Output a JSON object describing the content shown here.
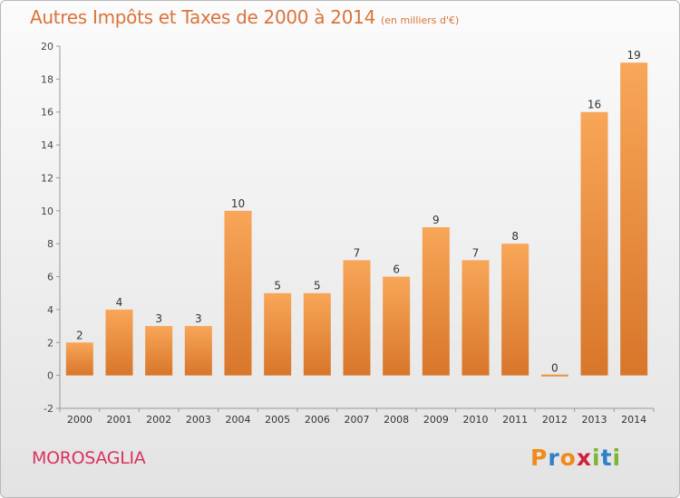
{
  "title": "Autres Impôts et Taxes de 2000 à 2014",
  "unit": "(en milliers d'€)",
  "commune": "MOROSAGLIA",
  "brand": {
    "letters": [
      "P",
      "r",
      "o",
      "x",
      "i",
      "t",
      "i"
    ],
    "colors": [
      "#f08a18",
      "#2f80c8",
      "#f08a18",
      "#d01f3d",
      "#7bb637",
      "#2f80c8",
      "#7bb637"
    ]
  },
  "colors": {
    "bar_light": "#f8a658",
    "bar_dark": "#d8762a",
    "axis": "#999999",
    "grid": "#999999"
  },
  "chart_data": {
    "type": "bar",
    "categories": [
      "2000",
      "2001",
      "2002",
      "2003",
      "2004",
      "2005",
      "2006",
      "2007",
      "2008",
      "2009",
      "2010",
      "2011",
      "2012",
      "2013",
      "2014"
    ],
    "values": [
      2,
      4,
      3,
      3,
      10,
      5,
      5,
      7,
      6,
      9,
      7,
      8,
      0,
      16,
      19
    ],
    "title": "Autres Impôts et Taxes de 2000 à 2014",
    "subtitle": "(en milliers d'€)",
    "xlabel": "",
    "ylabel": "",
    "ylim": [
      -2,
      20
    ],
    "yticks": [
      -2,
      0,
      2,
      4,
      6,
      8,
      10,
      12,
      14,
      16,
      18,
      20
    ],
    "grid": false,
    "legend": "none"
  }
}
